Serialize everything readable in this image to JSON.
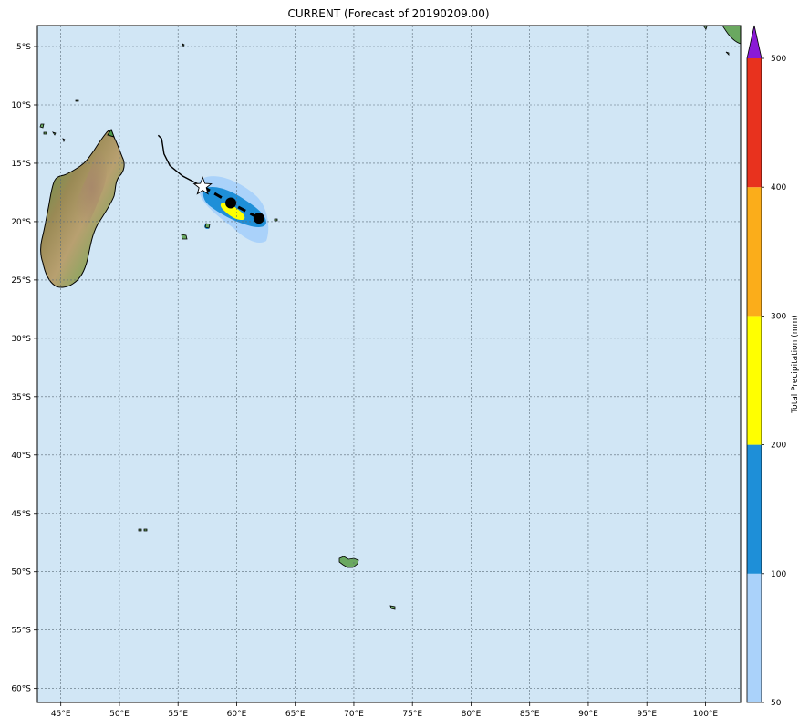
{
  "title": "CURRENT (Forecast of 20190209.00)",
  "map": {
    "lon_range": [
      43,
      103
    ],
    "lat_range": [
      -61.2,
      -3.2
    ],
    "ocean_color": "#d1e6f5",
    "grid_color": "#5a6b78",
    "lon_ticks": [
      {
        "value": 45,
        "label": "45°E"
      },
      {
        "value": 50,
        "label": "50°E"
      },
      {
        "value": 55,
        "label": "55°E"
      },
      {
        "value": 60,
        "label": "60°E"
      },
      {
        "value": 65,
        "label": "65°E"
      },
      {
        "value": 70,
        "label": "70°E"
      },
      {
        "value": 75,
        "label": "75°E"
      },
      {
        "value": 80,
        "label": "80°E"
      },
      {
        "value": 85,
        "label": "85°E"
      },
      {
        "value": 90,
        "label": "90°E"
      },
      {
        "value": 95,
        "label": "95°E"
      },
      {
        "value": 100,
        "label": "100°E"
      }
    ],
    "lat_ticks": [
      {
        "value": -5,
        "label": "5°S"
      },
      {
        "value": -10,
        "label": "10°S"
      },
      {
        "value": -15,
        "label": "15°S"
      },
      {
        "value": -20,
        "label": "20°S"
      },
      {
        "value": -25,
        "label": "25°S"
      },
      {
        "value": -30,
        "label": "30°S"
      },
      {
        "value": -35,
        "label": "35°S"
      },
      {
        "value": -40,
        "label": "40°S"
      },
      {
        "value": -45,
        "label": "45°S"
      },
      {
        "value": -50,
        "label": "50°S"
      },
      {
        "value": -55,
        "label": "55°S"
      },
      {
        "value": -60,
        "label": "60°S"
      }
    ],
    "observed_track": [
      [
        53.3,
        -12.6
      ],
      [
        53.6,
        -12.9
      ],
      [
        53.8,
        -14.2
      ],
      [
        54.3,
        -15.2
      ],
      [
        55.4,
        -16.1
      ],
      [
        57.1,
        -17.0
      ]
    ],
    "forecast_track": [
      [
        57.1,
        -17.0
      ],
      [
        59.5,
        -18.4
      ],
      [
        61.9,
        -19.7
      ]
    ],
    "current_position": [
      57.1,
      -17.0
    ],
    "forecast_points": [
      [
        59.5,
        -18.4
      ],
      [
        61.9,
        -19.7
      ]
    ]
  },
  "colorbar": {
    "label": "Total Precipitation (mm)",
    "levels": [
      {
        "from": 50,
        "to": 100,
        "color": "#aad2fa"
      },
      {
        "from": 100,
        "to": 200,
        "color": "#1e8fd8"
      },
      {
        "from": 200,
        "to": 300,
        "color": "#ffff00"
      },
      {
        "from": 300,
        "to": 400,
        "color": "#fbad1a"
      },
      {
        "from": 400,
        "to": 500,
        "color": "#e8321e"
      }
    ],
    "extend_color": "#8a1ad6",
    "ticks": [
      {
        "value": 50,
        "label": "50"
      },
      {
        "value": 100,
        "label": "100"
      },
      {
        "value": 200,
        "label": "200"
      },
      {
        "value": 300,
        "label": "300"
      },
      {
        "value": 400,
        "label": "400"
      },
      {
        "value": 500,
        "label": "500"
      }
    ]
  }
}
